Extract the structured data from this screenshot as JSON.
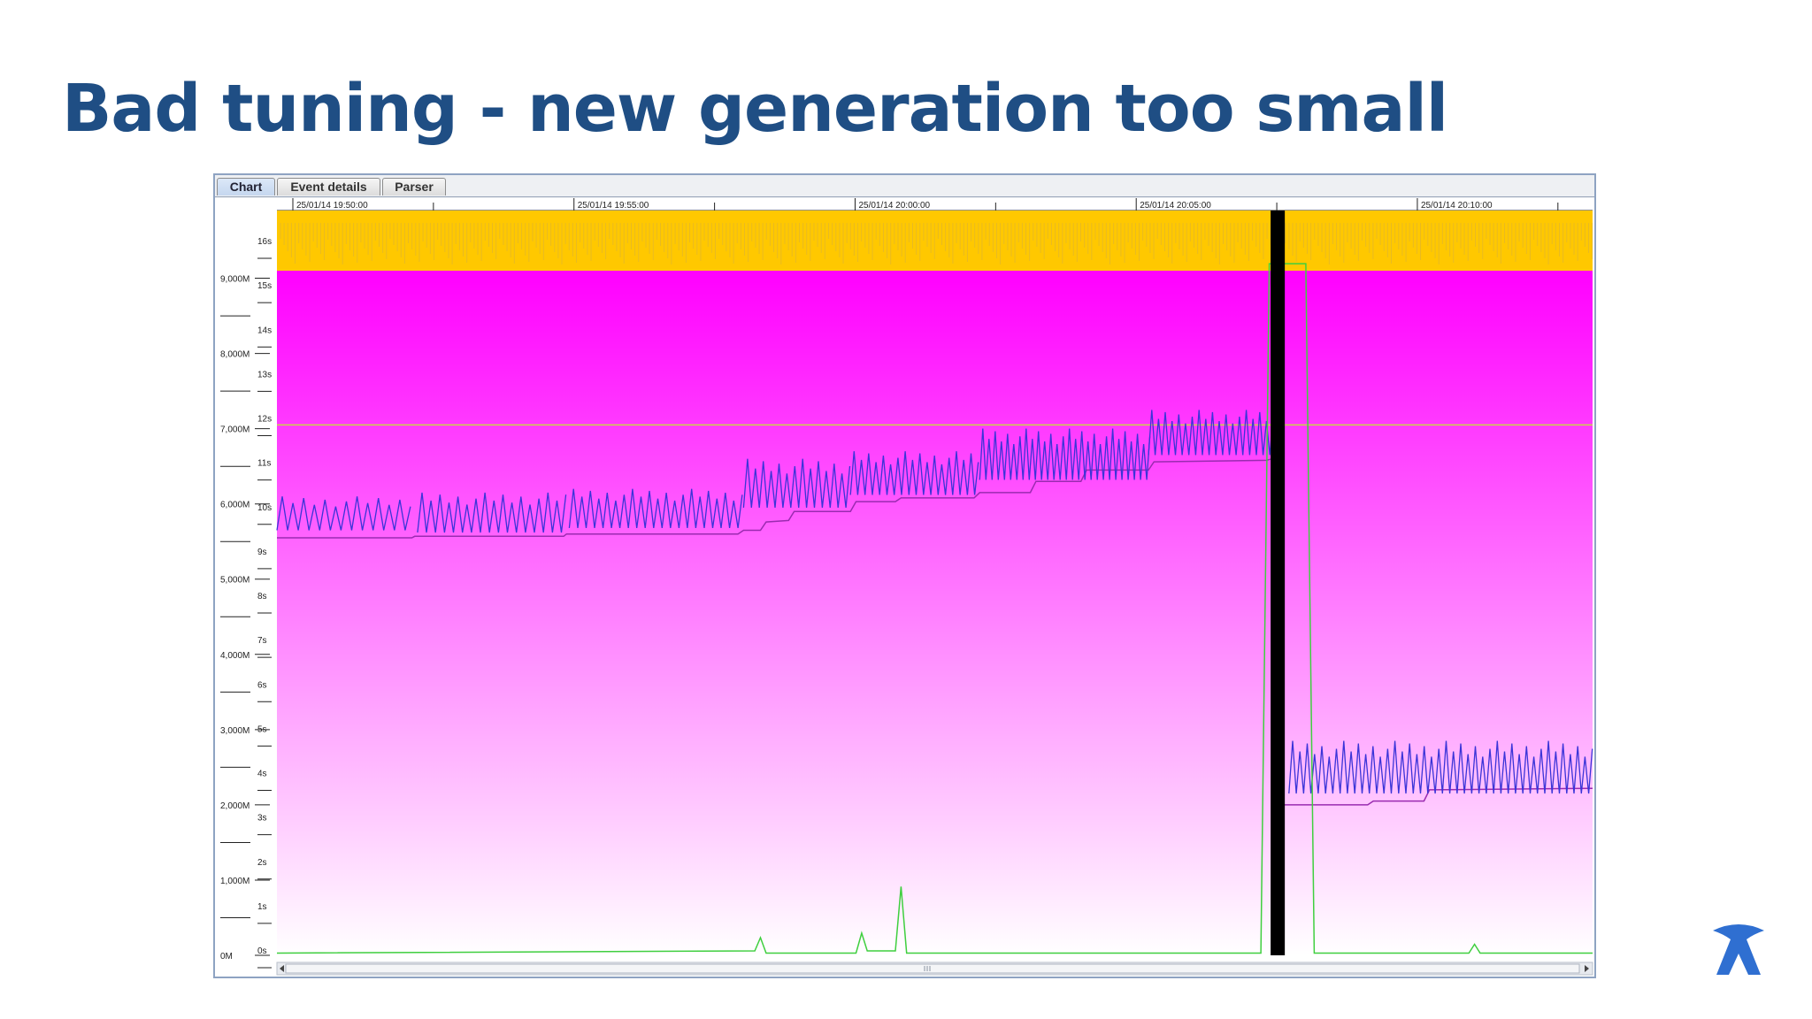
{
  "slide": {
    "title": "Bad tuning - new generation too small"
  },
  "tabs": [
    {
      "label": "Chart",
      "active": true
    },
    {
      "label": "Event details",
      "active": false
    },
    {
      "label": "Parser",
      "active": false
    }
  ],
  "colors": {
    "title": "#1f4e84",
    "pause_band": "#ffc800",
    "heap_gradient_top": "#ff00ff",
    "heap_gradient_bottom": "#ffffff",
    "heap_used": "#3a34d8",
    "tenured_used": "#9a2bb0",
    "gc_pause_line": "#3fcf3f",
    "threshold_line": "#c8d44a",
    "full_gc_marker": "#000000",
    "logo": "#2f6fd1"
  },
  "logo": {
    "icon": "atlassian-logo-icon"
  },
  "chart_data": {
    "type": "line",
    "time_ticks": [
      "25/01/14 19:50:00",
      "25/01/14 19:55:00",
      "25/01/14 20:00:00",
      "25/01/14 20:05:00",
      "25/01/14 20:10:00"
    ],
    "memory_axis_labels": [
      "0M",
      "1,000M",
      "2,000M",
      "3,000M",
      "4,000M",
      "5,000M",
      "6,000M",
      "7,000M",
      "8,000M",
      "9,000M"
    ],
    "pause_axis_labels": [
      "0s",
      "1s",
      "2s",
      "3s",
      "4s",
      "5s",
      "6s",
      "7s",
      "8s",
      "9s",
      "10s",
      "11s",
      "12s",
      "13s",
      "14s",
      "15s",
      "16s"
    ],
    "x_range_minutes": [
      0,
      23.4
    ],
    "y_memory_range_M": [
      0,
      9900
    ],
    "threshold_M": 7050,
    "full_gc_at_minute": 17.8,
    "series": [
      {
        "role": "heap-after-gc",
        "points": [
          [
            0,
            5550
          ],
          [
            2.4,
            5550
          ],
          [
            2.45,
            5570
          ],
          [
            5.1,
            5570
          ],
          [
            5.15,
            5600
          ],
          [
            8.2,
            5600
          ],
          [
            8.3,
            5650
          ],
          [
            8.6,
            5650
          ],
          [
            8.7,
            5760
          ],
          [
            9.1,
            5780
          ],
          [
            9.2,
            5900
          ],
          [
            10.2,
            5900
          ],
          [
            10.3,
            6030
          ],
          [
            11.0,
            6030
          ],
          [
            11.1,
            6080
          ],
          [
            12.4,
            6080
          ],
          [
            12.5,
            6150
          ],
          [
            13.4,
            6150
          ],
          [
            13.5,
            6300
          ],
          [
            14.3,
            6300
          ],
          [
            14.4,
            6450
          ],
          [
            15.5,
            6450
          ],
          [
            15.6,
            6560
          ],
          [
            17.6,
            6580
          ],
          [
            17.7,
            6600
          ]
        ]
      },
      {
        "role": "heap-after-gc-post-full-gc",
        "points": [
          [
            17.9,
            2000
          ],
          [
            19.4,
            2000
          ],
          [
            19.5,
            2050
          ],
          [
            20.4,
            2050
          ],
          [
            20.5,
            2200
          ],
          [
            23.4,
            2220
          ]
        ]
      },
      {
        "role": "heap-used-sawtooth",
        "segments": [
          {
            "from": 0,
            "to": 2.4,
            "low": 5650,
            "high": 6100,
            "period": 0.19
          },
          {
            "from": 2.5,
            "to": 5.2,
            "low": 5620,
            "high": 6150,
            "period": 0.16
          },
          {
            "from": 5.2,
            "to": 8.3,
            "low": 5680,
            "high": 6200,
            "period": 0.15
          },
          {
            "from": 8.3,
            "to": 10.2,
            "low": 5950,
            "high": 6600,
            "period": 0.14
          },
          {
            "from": 10.2,
            "to": 12.5,
            "low": 6120,
            "high": 6700,
            "period": 0.13
          },
          {
            "from": 12.5,
            "to": 15.5,
            "low": 6320,
            "high": 7000,
            "period": 0.11
          },
          {
            "from": 15.5,
            "to": 17.7,
            "low": 6650,
            "high": 7250,
            "period": 0.12
          },
          {
            "from": 18.0,
            "to": 23.4,
            "low": 2150,
            "high": 2850,
            "period": 0.13
          }
        ]
      },
      {
        "role": "gc-pause-time",
        "points": [
          [
            0,
            0.05
          ],
          [
            8.5,
            0.1
          ],
          [
            8.6,
            0.4
          ],
          [
            8.7,
            0.05
          ],
          [
            10.3,
            0.05
          ],
          [
            10.4,
            0.5
          ],
          [
            10.5,
            0.1
          ],
          [
            11.0,
            0.1
          ],
          [
            11.1,
            1.55
          ],
          [
            11.2,
            0.05
          ],
          [
            17.5,
            0.05
          ],
          [
            17.65,
            15.6
          ],
          [
            18.3,
            15.6
          ],
          [
            18.45,
            0.05
          ],
          [
            21.2,
            0.05
          ],
          [
            21.3,
            0.25
          ],
          [
            21.4,
            0.05
          ],
          [
            23.4,
            0.05
          ]
        ]
      }
    ]
  }
}
